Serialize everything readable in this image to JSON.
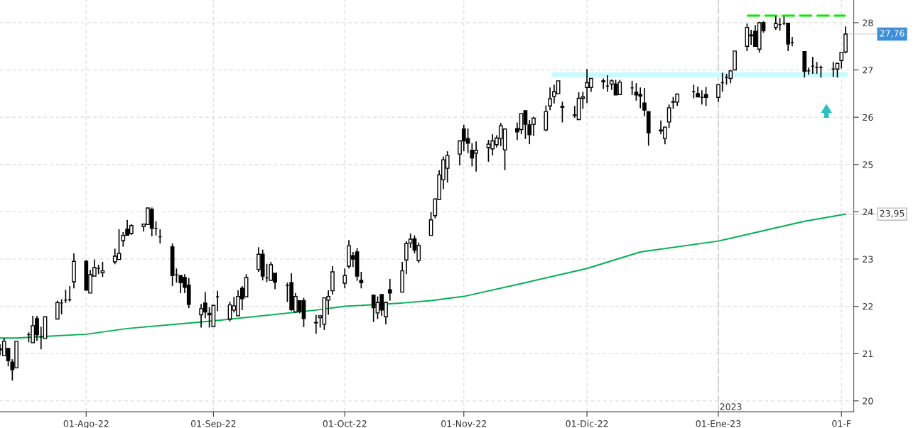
{
  "chart_data": {
    "type": "candlestick",
    "x": [
      "2022-07-11",
      "2022-07-12",
      "2022-07-13",
      "2022-07-14",
      "2022-07-15",
      "2022-07-18",
      "2022-07-19",
      "2022-07-20",
      "2022-07-21",
      "2022-07-22",
      "2022-07-25",
      "2022-07-26",
      "2022-07-27",
      "2022-07-28",
      "2022-07-29",
      "2022-08-01",
      "2022-08-02",
      "2022-08-03",
      "2022-08-04",
      "2022-08-05",
      "2022-08-08",
      "2022-08-09",
      "2022-08-10",
      "2022-08-11",
      "2022-08-12",
      "2022-08-15",
      "2022-08-16",
      "2022-08-17",
      "2022-08-18",
      "2022-08-19",
      "2022-08-22",
      "2022-08-23",
      "2022-08-24",
      "2022-08-25",
      "2022-08-26",
      "2022-08-29",
      "2022-08-30",
      "2022-08-31",
      "2022-09-01",
      "2022-09-02",
      "2022-09-05",
      "2022-09-06",
      "2022-09-07",
      "2022-09-08",
      "2022-09-09",
      "2022-09-12",
      "2022-09-13",
      "2022-09-14",
      "2022-09-15",
      "2022-09-16",
      "2022-09-19",
      "2022-09-20",
      "2022-09-21",
      "2022-09-22",
      "2022-09-23",
      "2022-09-26",
      "2022-09-27",
      "2022-09-28",
      "2022-09-29",
      "2022-09-30",
      "2022-10-03",
      "2022-10-04",
      "2022-10-05",
      "2022-10-06",
      "2022-10-07",
      "2022-10-10",
      "2022-10-11",
      "2022-10-12",
      "2022-10-13",
      "2022-10-14",
      "2022-10-17",
      "2022-10-18",
      "2022-10-19",
      "2022-10-20",
      "2022-10-21",
      "2022-10-24",
      "2022-10-25",
      "2022-10-26",
      "2022-10-27",
      "2022-10-28",
      "2022-10-31",
      "2022-11-01",
      "2022-11-02",
      "2022-11-03",
      "2022-11-04",
      "2022-11-07",
      "2022-11-08",
      "2022-11-09",
      "2022-11-10",
      "2022-11-11",
      "2022-11-14",
      "2022-11-15",
      "2022-11-16",
      "2022-11-17",
      "2022-11-18",
      "2022-11-21",
      "2022-11-22",
      "2022-11-23",
      "2022-11-24",
      "2022-11-25",
      "2022-11-28",
      "2022-11-29",
      "2022-11-30",
      "2022-12-01",
      "2022-12-02",
      "2022-12-05",
      "2022-12-06",
      "2022-12-07",
      "2022-12-08",
      "2022-12-09",
      "2022-12-12",
      "2022-12-13",
      "2022-12-14",
      "2022-12-15",
      "2022-12-16",
      "2022-12-19",
      "2022-12-20",
      "2022-12-21",
      "2022-12-22",
      "2022-12-23",
      "2022-12-27",
      "2022-12-28",
      "2022-12-29",
      "2022-12-30",
      "2023-01-02",
      "2023-01-03",
      "2023-01-04",
      "2023-01-05",
      "2023-01-06",
      "2023-01-09",
      "2023-01-10",
      "2023-01-11",
      "2023-01-12",
      "2023-01-13",
      "2023-01-16",
      "2023-01-17",
      "2023-01-18",
      "2023-01-19",
      "2023-01-20",
      "2023-01-23",
      "2023-01-24",
      "2023-01-25",
      "2023-01-26",
      "2023-01-27",
      "2023-01-30",
      "2023-01-31",
      "2023-02-01",
      "2023-02-02"
    ],
    "ohlc": [
      [
        21.1,
        21.2,
        20.96,
        21.08
      ],
      [
        20.96,
        21.33,
        20.96,
        21.26
      ],
      [
        21.11,
        21.11,
        20.73,
        20.85
      ],
      [
        20.82,
        20.88,
        20.43,
        20.66
      ],
      [
        20.7,
        21.26,
        20.7,
        21.26
      ],
      [
        21.4,
        21.45,
        21.24,
        21.4
      ],
      [
        21.23,
        21.8,
        21.23,
        21.59
      ],
      [
        21.74,
        21.8,
        21.27,
        21.4
      ],
      [
        21.35,
        21.57,
        21.09,
        21.35
      ],
      [
        21.32,
        21.78,
        21.32,
        21.78
      ],
      [
        21.73,
        22.12,
        21.73,
        22.08
      ],
      [
        22.07,
        22.15,
        21.83,
        22.07
      ],
      [
        22.13,
        22.35,
        22.07,
        22.13
      ],
      [
        22.14,
        22.43,
        22.1,
        22.14
      ],
      [
        22.52,
        23.12,
        22.38,
        22.95
      ],
      [
        22.95,
        22.98,
        22.34,
        22.34
      ],
      [
        22.28,
        22.77,
        22.28,
        22.67
      ],
      [
        22.64,
        22.99,
        22.64,
        22.82
      ],
      [
        22.8,
        22.88,
        22.68,
        22.8
      ],
      [
        22.71,
        22.94,
        22.62,
        22.75
      ],
      [
        22.94,
        23.22,
        22.89,
        23.06
      ],
      [
        22.99,
        23.63,
        22.99,
        23.12
      ],
      [
        23.39,
        23.57,
        23.26,
        23.5
      ],
      [
        23.63,
        23.83,
        23.5,
        23.5
      ],
      [
        23.54,
        23.74,
        23.51,
        23.71
      ],
      [
        23.69,
        23.75,
        23.58,
        23.74
      ],
      [
        23.73,
        24.08,
        23.73,
        24.08
      ],
      [
        24.05,
        24.09,
        23.48,
        23.65
      ],
      [
        23.65,
        23.8,
        23.5,
        23.65
      ],
      [
        23.47,
        23.63,
        23.33,
        23.47
      ],
      [
        23.26,
        23.33,
        22.43,
        22.65
      ],
      [
        22.67,
        22.8,
        22.5,
        22.67
      ],
      [
        22.65,
        22.65,
        22.28,
        22.5
      ],
      [
        22.61,
        22.68,
        22.28,
        22.4
      ],
      [
        22.45,
        22.6,
        21.96,
        22.04
      ],
      [
        21.82,
        22.05,
        21.55,
        21.95
      ],
      [
        22.07,
        22.3,
        21.75,
        21.88
      ],
      [
        21.85,
        21.98,
        21.55,
        21.82
      ],
      [
        21.57,
        22.02,
        21.56,
        22.02
      ],
      [
        22.2,
        22.33,
        21.9,
        22.2
      ],
      [
        21.73,
        22.1,
        21.68,
        22.03
      ],
      [
        21.92,
        22.2,
        21.87,
        22.01
      ],
      [
        21.8,
        22.34,
        21.8,
        22.21
      ],
      [
        22.38,
        22.43,
        21.92,
        22.16
      ],
      [
        22.2,
        22.68,
        22.2,
        22.61
      ],
      [
        22.78,
        23.25,
        22.73,
        23.1
      ],
      [
        23.1,
        23.2,
        22.55,
        22.64
      ],
      [
        22.6,
        22.9,
        22.51,
        22.6
      ],
      [
        22.55,
        22.94,
        22.55,
        22.88
      ],
      [
        22.7,
        22.7,
        22.36,
        22.51
      ],
      [
        22.44,
        22.5,
        22.09,
        22.44
      ],
      [
        22.5,
        22.7,
        21.9,
        21.93
      ],
      [
        21.88,
        22.28,
        21.87,
        22.21
      ],
      [
        22.12,
        22.12,
        21.85,
        21.9
      ],
      [
        22.12,
        22.18,
        21.56,
        21.74
      ],
      [
        21.65,
        21.82,
        21.42,
        21.66
      ],
      [
        21.76,
        21.82,
        21.55,
        21.8
      ],
      [
        21.62,
        22.18,
        21.5,
        22.18
      ],
      [
        22.13,
        22.34,
        21.82,
        22.21
      ],
      [
        22.33,
        22.85,
        22.25,
        22.73
      ],
      [
        22.49,
        22.8,
        22.38,
        22.65
      ],
      [
        22.85,
        23.4,
        22.8,
        23.28
      ],
      [
        23.07,
        23.15,
        22.83,
        23.0
      ],
      [
        23.15,
        23.23,
        22.54,
        22.64
      ],
      [
        22.55,
        22.73,
        22.38,
        22.5
      ],
      [
        22.24,
        22.24,
        21.67,
        21.97
      ],
      [
        21.86,
        22.21,
        21.73,
        22.08
      ],
      [
        22.25,
        22.25,
        21.8,
        21.92
      ],
      [
        21.78,
        22.1,
        21.62,
        22.08
      ],
      [
        22.35,
        22.58,
        22.12,
        22.28
      ],
      [
        22.3,
        22.94,
        22.3,
        22.75
      ],
      [
        22.98,
        23.38,
        22.68,
        23.33
      ],
      [
        23.34,
        23.54,
        23.24,
        23.42
      ],
      [
        23.43,
        23.5,
        23.12,
        23.19
      ],
      [
        22.97,
        23.35,
        22.92,
        23.29
      ],
      [
        23.5,
        23.99,
        23.5,
        23.83
      ],
      [
        23.92,
        24.29,
        23.86,
        24.27
      ],
      [
        24.26,
        24.88,
        24.26,
        24.78
      ],
      [
        24.68,
        25.17,
        24.48,
        25.1
      ],
      [
        24.92,
        25.28,
        24.62,
        25.19
      ],
      [
        25.22,
        25.51,
        24.98,
        25.5
      ],
      [
        25.75,
        25.84,
        25.28,
        25.5
      ],
      [
        25.55,
        25.76,
        25.24,
        25.45
      ],
      [
        25.3,
        25.45,
        24.96,
        25.14
      ],
      [
        25.24,
        25.49,
        24.85,
        25.3
      ],
      [
        25.36,
        25.52,
        25.06,
        25.43
      ],
      [
        25.33,
        25.64,
        25.19,
        25.5
      ],
      [
        25.42,
        25.62,
        25.36,
        25.56
      ],
      [
        25.55,
        25.88,
        25.39,
        25.82
      ],
      [
        25.31,
        25.76,
        24.88,
        25.75
      ],
      [
        25.76,
        25.89,
        25.52,
        25.69
      ],
      [
        25.74,
        26.08,
        25.64,
        26.08
      ],
      [
        26.14,
        26.14,
        25.54,
        25.85
      ],
      [
        25.84,
        25.94,
        25.43,
        25.63
      ],
      [
        25.85,
        26.01,
        25.6,
        25.98
      ],
      [
        25.73,
        26.25,
        25.7,
        26.12
      ],
      [
        26.24,
        26.63,
        26.15,
        26.39
      ],
      [
        26.44,
        26.69,
        26.29,
        26.54
      ],
      [
        26.5,
        26.77,
        26.5,
        26.77
      ],
      [
        26.21,
        26.33,
        25.89,
        26.23
      ],
      [
        26.05,
        26.24,
        25.99,
        26.04
      ],
      [
        25.95,
        26.53,
        25.95,
        26.4
      ],
      [
        26.4,
        26.54,
        26.18,
        26.43
      ],
      [
        26.63,
        27.02,
        26.3,
        26.73
      ],
      [
        26.63,
        26.83,
        26.54,
        26.82
      ],
      [
        26.77,
        26.82,
        26.6,
        26.75
      ],
      [
        26.66,
        26.89,
        26.54,
        26.66
      ],
      [
        26.7,
        26.8,
        26.58,
        26.77
      ],
      [
        26.7,
        26.79,
        26.47,
        26.47
      ],
      [
        26.48,
        26.79,
        26.48,
        26.74
      ],
      [
        26.62,
        26.77,
        26.47,
        26.62
      ],
      [
        26.53,
        26.72,
        26.35,
        26.47
      ],
      [
        26.48,
        26.63,
        26.19,
        26.45
      ],
      [
        26.3,
        26.62,
        26.02,
        26.15
      ],
      [
        26.12,
        26.12,
        25.4,
        25.67
      ],
      [
        25.71,
        25.93,
        25.64,
        25.73
      ],
      [
        25.55,
        25.8,
        25.43,
        25.79
      ],
      [
        25.9,
        26.27,
        25.77,
        26.2
      ],
      [
        26.32,
        26.43,
        26.18,
        26.33
      ],
      [
        26.32,
        26.5,
        26.24,
        26.49
      ],
      [
        26.54,
        26.69,
        26.4,
        26.54
      ],
      [
        26.5,
        26.65,
        26.43,
        26.43
      ],
      [
        26.42,
        26.57,
        26.27,
        26.42
      ],
      [
        26.48,
        26.64,
        26.24,
        26.42
      ],
      [
        26.42,
        26.69,
        26.32,
        26.69
      ],
      [
        26.73,
        26.94,
        26.54,
        26.73
      ],
      [
        26.84,
        26.92,
        26.69,
        26.84
      ],
      [
        26.82,
        27.0,
        26.72,
        26.98
      ],
      [
        27.0,
        27.4,
        27.0,
        27.4
      ],
      [
        27.5,
        27.98,
        27.4,
        27.9
      ],
      [
        27.74,
        27.85,
        27.53,
        27.72
      ],
      [
        27.82,
        27.95,
        27.5,
        27.5
      ],
      [
        27.44,
        28.02,
        27.37,
        28.0
      ],
      [
        28.0,
        28.03,
        27.79,
        27.83
      ],
      [
        27.9,
        28.14,
        27.85,
        27.98
      ],
      [
        27.96,
        28.1,
        27.83,
        27.96
      ],
      [
        27.99,
        28.13,
        27.95,
        27.99
      ],
      [
        27.99,
        27.99,
        27.4,
        27.55
      ],
      [
        27.58,
        27.7,
        27.5,
        27.58
      ],
      [
        27.39,
        27.39,
        26.84,
        26.97
      ],
      [
        26.98,
        27.05,
        26.9,
        26.98
      ],
      [
        27.08,
        27.28,
        26.92,
        27.08
      ],
      [
        27.05,
        27.17,
        26.92,
        27.05
      ],
      [
        27.05,
        27.09,
        26.84,
        27.05
      ],
      [
        27.02,
        27.17,
        26.85,
        27.02
      ],
      [
        27.02,
        27.14,
        26.84,
        27.14
      ],
      [
        27.2,
        27.37,
        27.03,
        27.37
      ],
      [
        27.38,
        27.92,
        27.35,
        27.76
      ]
    ],
    "color": "#000000",
    "series": [
      {
        "type": "line",
        "color": "#00b050",
        "x": [
          "2022-07-11",
          "2022-07-15",
          "2022-07-21",
          "2022-08-01",
          "2022-08-11",
          "2022-09-02",
          "2022-09-26",
          "2022-10-03",
          "2022-10-17",
          "2022-10-24",
          "2022-11-01",
          "2022-11-16",
          "2022-12-01",
          "2022-12-14",
          "2023-01-02",
          "2023-01-13",
          "2023-01-23",
          "2023-02-02"
        ],
        "values": [
          21.33,
          21.33,
          21.36,
          21.41,
          21.53,
          21.7,
          21.92,
          22.0,
          22.07,
          22.12,
          22.21,
          22.5,
          22.8,
          23.15,
          23.38,
          23.6,
          23.8,
          23.95
        ]
      },
      {
        "type": "line",
        "color": "#00ee00",
        "line_style": "dashed",
        "x": [
          "2023-01-09",
          "2023-02-02"
        ],
        "values": [
          28.15,
          28.15
        ]
      },
      {
        "type": "line",
        "color": "#c8fbff",
        "x": [
          "2022-11-23",
          "2023-02-02"
        ],
        "values": [
          26.9,
          26.9
        ]
      }
    ],
    "ref_lines": [
      {
        "axis": "x",
        "value": "2023-01-02",
        "label": "2023",
        "color": "#cccccc",
        "line_style": "dashed"
      }
    ],
    "annotations": [
      {
        "text": "27,76",
        "x": "2023-02-02",
        "y": 27.76
      },
      {
        "text": "23,95",
        "x": "2023-02-02",
        "y": 23.95
      }
    ],
    "xlim": [
      "2022-07-11",
      "2023-02-04"
    ],
    "xticks": [
      {
        "value": "2022-08-01",
        "label": "01-Ago-22"
      },
      {
        "value": "2022-09-01",
        "label": "01-Sep-22"
      },
      {
        "value": "2022-10-03",
        "label": "01-Oct-22"
      },
      {
        "value": "2022-11-01",
        "label": "01-Nov-22"
      },
      {
        "value": "2022-12-01",
        "label": "01-Dic-22"
      },
      {
        "value": "2023-01-02",
        "label": "01-Ene-23"
      },
      {
        "value": "2023-02-01",
        "label": "01-F"
      }
    ],
    "ylim": [
      19.77,
      28.48
    ],
    "yticks": [
      20,
      21,
      22,
      23,
      24,
      25,
      26,
      27,
      28
    ],
    "grid": true
  }
}
